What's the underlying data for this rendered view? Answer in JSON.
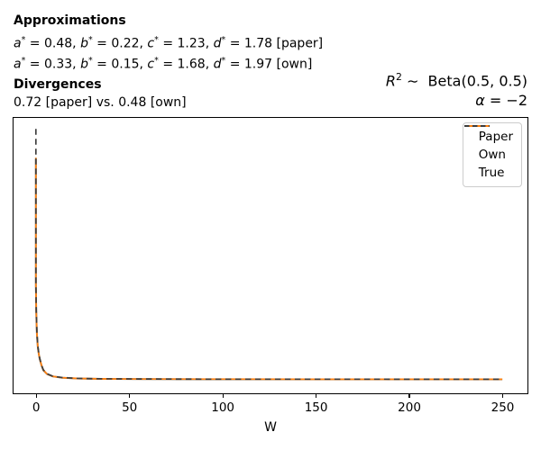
{
  "figure": {
    "header": {
      "approx_title": "Approximations",
      "approx_line_paper": "a^* = 0.48, b^* = 0.22, c^* = 1.23, d^* = 1.78 [paper]",
      "approx_line_own": "a^* = 0.33, b^* = 0.15, c^* = 1.68, d^* = 1.97 [own]",
      "div_title": "Divergences",
      "div_line": "0.72 [paper] vs. 0.48 [own]"
    },
    "right_annotations": {
      "distribution": "R^2 ∼  Beta(0.5, 0.5)",
      "alpha": "α = −2"
    }
  },
  "chart_data": {
    "type": "line",
    "title": "",
    "xlabel": "W",
    "ylabel": "",
    "x_ticks": [
      0,
      50,
      100,
      150,
      200,
      250
    ],
    "y_ticks": [],
    "xlim": [
      -12,
      263
    ],
    "ylim": [
      0,
      1.0
    ],
    "grid": false,
    "legend": {
      "position": "upper right"
    },
    "series": [
      {
        "name": "Paper",
        "color": "#1f77b4",
        "style": "solid",
        "x": [
          0,
          0,
          0.2,
          0.5,
          1,
          1.5,
          2,
          3,
          4,
          6,
          9,
          14,
          22,
          35,
          55,
          90,
          150,
          250
        ],
        "y": [
          0.85,
          0.388,
          0.291,
          0.214,
          0.166,
          0.142,
          0.122,
          0.098,
          0.08,
          0.0665,
          0.0582,
          0.0534,
          0.0505,
          0.0491,
          0.0484,
          0.048,
          0.0478,
          0.0477
        ]
      },
      {
        "name": "Own",
        "color": "#ff7f0e",
        "style": "solid",
        "x": [
          0,
          0,
          0.2,
          0.5,
          1,
          1.5,
          2,
          3,
          4,
          6,
          9,
          14,
          22,
          35,
          55,
          90,
          150,
          250
        ],
        "y": [
          0.855,
          0.392,
          0.294,
          0.216,
          0.167,
          0.143,
          0.123,
          0.099,
          0.081,
          0.067,
          0.0585,
          0.0536,
          0.0507,
          0.0492,
          0.0485,
          0.0481,
          0.0479,
          0.0478
        ]
      },
      {
        "name": "True",
        "color": "#3d3d3d",
        "style": "dashed",
        "x": [
          0,
          0,
          0.2,
          0.5,
          1,
          1.5,
          2,
          3,
          4,
          6,
          9,
          14,
          22,
          35,
          55,
          90,
          150,
          250
        ],
        "y": [
          0.96,
          0.4,
          0.3,
          0.22,
          0.17,
          0.145,
          0.125,
          0.1,
          0.082,
          0.068,
          0.059,
          0.054,
          0.051,
          0.0495,
          0.0487,
          0.0483,
          0.0481,
          0.048
        ]
      }
    ]
  }
}
